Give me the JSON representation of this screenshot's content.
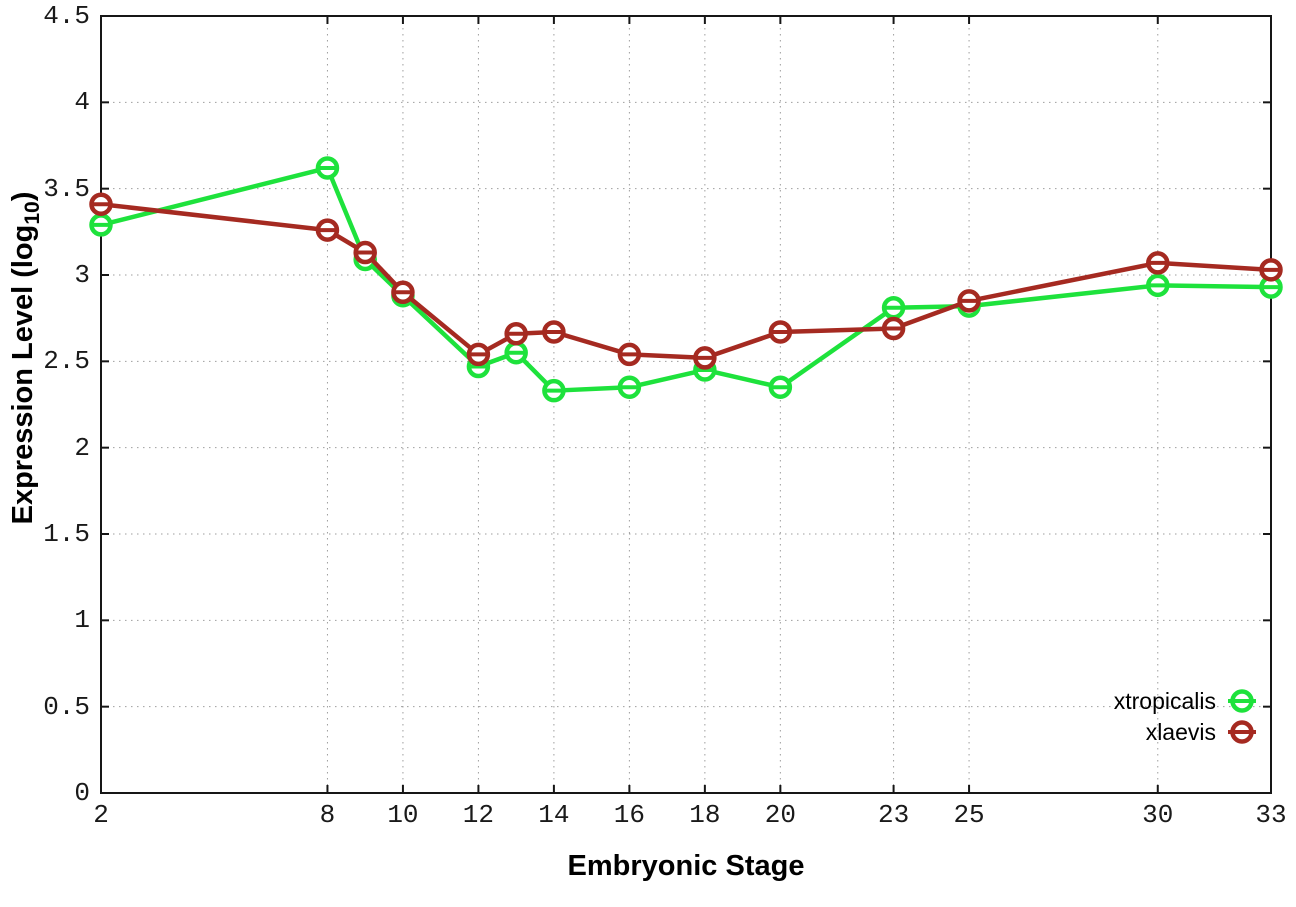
{
  "chart_data": {
    "type": "line",
    "title": "",
    "xlabel": "Embryonic Stage",
    "ylabel_pre": "Expression Level (log",
    "ylabel_sub": "10",
    "ylabel_post": ")",
    "x": [
      2,
      8,
      9,
      10,
      12,
      13,
      14,
      16,
      18,
      20,
      23,
      25,
      30,
      33
    ],
    "xlim": [
      2,
      33
    ],
    "ylim": [
      0,
      4.5
    ],
    "xtick_values": [
      2,
      8,
      10,
      12,
      14,
      16,
      18,
      20,
      23,
      25,
      30,
      33
    ],
    "xtick_labels": [
      "2",
      "8",
      "10",
      "12",
      "14",
      "16",
      "18",
      "20",
      "23",
      "25",
      "30",
      "33"
    ],
    "ytick_values": [
      0,
      0.5,
      1,
      1.5,
      2,
      2.5,
      3,
      3.5,
      4,
      4.5
    ],
    "ytick_labels": [
      "0",
      "0.5",
      "1",
      "1.5",
      "2",
      "2.5",
      "3",
      "3.5",
      "4",
      "4.5"
    ],
    "grid": true,
    "grid_style": "dotted",
    "legend_position": "bottom-right",
    "background_color": "#ffffff",
    "border_color": "#161616",
    "grid_color": "#9e9e9e",
    "series": [
      {
        "name": "xtropicalis",
        "color": "#1ee23c",
        "marker": "open-circle-with-bar",
        "values": [
          3.29,
          3.62,
          3.09,
          2.88,
          2.47,
          2.55,
          2.33,
          2.35,
          2.45,
          2.35,
          2.81,
          2.82,
          2.94,
          2.93
        ]
      },
      {
        "name": "xlaevis",
        "color": "#a52a21",
        "marker": "open-circle-with-bar",
        "values": [
          3.41,
          3.26,
          3.13,
          2.9,
          2.54,
          2.66,
          2.67,
          2.54,
          2.52,
          2.67,
          2.69,
          2.85,
          3.07,
          3.03
        ]
      }
    ]
  }
}
